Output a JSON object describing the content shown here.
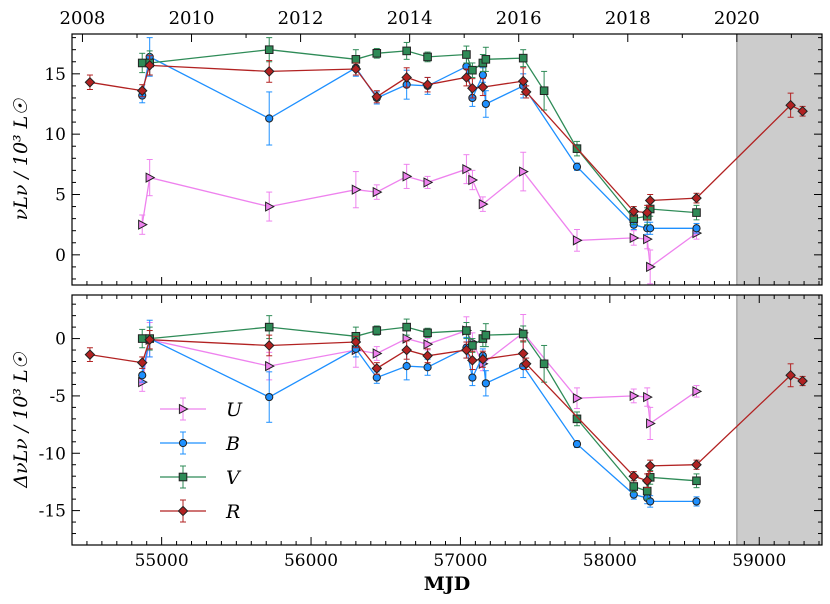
{
  "chart_data": [
    {
      "type": "scatter",
      "panel": "top",
      "ylabel": "νLν / 10³ L☉",
      "ylim": [
        -2.5,
        18.3
      ],
      "yticks": [
        0,
        5,
        10,
        15
      ],
      "xlim": [
        54400,
        59420
      ],
      "series": [
        {
          "name": "U",
          "color": "#ee82ee",
          "marker": "triangle-right",
          "x": [
            54870,
            54920,
            55720,
            56300,
            56440,
            56640,
            56780,
            57040,
            57080,
            57150,
            57420,
            57780,
            58160,
            58250,
            58270,
            58580
          ],
          "y": [
            2.5,
            6.4,
            4.0,
            5.4,
            5.2,
            6.5,
            6.0,
            7.1,
            6.2,
            4.2,
            6.9,
            1.2,
            1.4,
            1.3,
            -1.0,
            1.8
          ],
          "err": [
            0.8,
            1.5,
            1.2,
            1.5,
            0.6,
            1.0,
            0.5,
            1.2,
            0.8,
            0.6,
            1.6,
            0.9,
            0.6,
            0.8,
            1.4,
            0.5
          ]
        },
        {
          "name": "B",
          "color": "#1e90ff",
          "marker": "circle",
          "x": [
            54870,
            54920,
            55720,
            56300,
            56440,
            56640,
            56780,
            57040,
            57080,
            57150,
            57170,
            57420,
            57780,
            58160,
            58250,
            58270,
            58580
          ],
          "y": [
            13.2,
            16.4,
            11.3,
            15.5,
            13.0,
            14.1,
            14.0,
            15.6,
            13.0,
            14.9,
            12.5,
            14.0,
            7.3,
            2.5,
            2.2,
            2.2,
            2.2
          ],
          "err": [
            0.6,
            1.6,
            2.2,
            0.7,
            0.5,
            1.2,
            0.7,
            0.9,
            0.7,
            0.6,
            1.1,
            1.0,
            0.3,
            0.4,
            0.5,
            0.5,
            0.4
          ]
        },
        {
          "name": "V",
          "color": "#2e8b57",
          "marker": "square",
          "x": [
            54870,
            54920,
            55720,
            56300,
            56440,
            56640,
            56780,
            57040,
            57080,
            57150,
            57170,
            57420,
            57560,
            57780,
            58160,
            58250,
            58270,
            58580
          ],
          "y": [
            15.9,
            15.9,
            17.0,
            16.2,
            16.7,
            16.9,
            16.4,
            16.6,
            15.3,
            15.9,
            16.2,
            16.3,
            13.6,
            8.8,
            3.0,
            3.2,
            3.8,
            3.5
          ],
          "err": [
            0.8,
            1.0,
            1.0,
            0.8,
            0.4,
            0.7,
            0.4,
            0.7,
            0.6,
            0.7,
            1.0,
            0.7,
            1.6,
            0.6,
            0.5,
            0.7,
            0.6,
            0.6
          ]
        },
        {
          "name": "R",
          "color": "#b22222",
          "marker": "diamond",
          "x": [
            54520,
            54870,
            54920,
            55720,
            56300,
            56440,
            56640,
            56780,
            57040,
            57080,
            57150,
            57420,
            57440,
            58160,
            58250,
            58270,
            58580,
            59210,
            59290
          ],
          "y": [
            14.3,
            13.6,
            15.7,
            15.2,
            15.4,
            13.1,
            14.7,
            14.1,
            14.7,
            13.8,
            13.9,
            14.4,
            13.5,
            3.6,
            3.5,
            4.5,
            4.7,
            12.4,
            11.9
          ],
          "err": [
            0.6,
            0.5,
            0.8,
            0.9,
            0.5,
            0.5,
            0.8,
            0.6,
            0.7,
            0.8,
            0.7,
            1.1,
            0.5,
            0.4,
            0.6,
            0.5,
            0.4,
            1.0,
            0.4
          ]
        }
      ]
    },
    {
      "type": "scatter",
      "panel": "bottom",
      "ylabel": "ΔνLν / 10³ L☉",
      "xlabel": "MJD",
      "ylim": [
        -18.0,
        3.8
      ],
      "yticks": [
        0,
        -5,
        -10,
        -15
      ],
      "ytick_labels": [
        "0",
        "-5",
        "-10",
        "-15"
      ],
      "xlim": [
        54400,
        59420
      ],
      "xticks": [
        55000,
        56000,
        57000,
        58000,
        59000
      ],
      "series": [
        {
          "name": "U",
          "color": "#ee82ee",
          "marker": "triangle-right",
          "x": [
            54870,
            54920,
            55720,
            56300,
            56440,
            56640,
            56780,
            57040,
            57080,
            57150,
            57420,
            57780,
            58160,
            58250,
            58270,
            58580
          ],
          "y": [
            -3.8,
            -0.1,
            -2.4,
            -1.0,
            -1.3,
            0.0,
            -0.5,
            0.7,
            -0.3,
            -2.2,
            0.5,
            -5.2,
            -5.0,
            -5.1,
            -7.4,
            -4.6
          ],
          "err": [
            0.8,
            1.5,
            1.2,
            1.5,
            0.6,
            1.0,
            0.5,
            1.2,
            0.8,
            0.6,
            1.6,
            0.9,
            0.6,
            0.8,
            1.4,
            0.5
          ]
        },
        {
          "name": "B",
          "color": "#1e90ff",
          "marker": "circle",
          "x": [
            54870,
            54920,
            55720,
            56300,
            56440,
            56640,
            56780,
            57040,
            57080,
            57150,
            57170,
            57420,
            57780,
            58160,
            58250,
            58270,
            58580
          ],
          "y": [
            -3.2,
            0.0,
            -5.1,
            -0.9,
            -3.4,
            -2.4,
            -2.5,
            -0.8,
            -3.4,
            -1.5,
            -3.9,
            -2.4,
            -9.2,
            -13.6,
            -13.9,
            -14.2,
            -14.2
          ],
          "err": [
            0.6,
            1.6,
            2.2,
            0.7,
            0.5,
            1.2,
            0.7,
            0.9,
            0.7,
            0.6,
            1.1,
            1.0,
            0.3,
            0.4,
            0.5,
            0.5,
            0.4
          ]
        },
        {
          "name": "V",
          "color": "#2e8b57",
          "marker": "square",
          "x": [
            54870,
            54920,
            55720,
            56300,
            56440,
            56640,
            56780,
            57040,
            57080,
            57150,
            57170,
            57420,
            57560,
            57780,
            58160,
            58250,
            58270,
            58580
          ],
          "y": [
            0.0,
            0.0,
            1.0,
            0.2,
            0.7,
            1.0,
            0.5,
            0.7,
            -0.6,
            0.0,
            0.3,
            0.4,
            -2.2,
            -7.0,
            -12.9,
            -13.3,
            -12.1,
            -12.4
          ],
          "err": [
            0.8,
            1.0,
            1.0,
            0.8,
            0.4,
            0.7,
            0.4,
            0.7,
            0.6,
            0.7,
            1.0,
            0.7,
            1.6,
            0.6,
            0.5,
            0.7,
            0.6,
            0.6
          ]
        },
        {
          "name": "R",
          "color": "#b22222",
          "marker": "diamond",
          "x": [
            54520,
            54870,
            54920,
            55720,
            56300,
            56440,
            56640,
            56780,
            57040,
            57080,
            57150,
            57420,
            57440,
            58160,
            58250,
            58270,
            58580,
            59210,
            59290
          ],
          "y": [
            -1.4,
            -2.1,
            -0.1,
            -0.6,
            -0.3,
            -2.6,
            -1.0,
            -1.5,
            -1.0,
            -1.9,
            -1.8,
            -1.3,
            -2.2,
            -12.0,
            -12.4,
            -11.1,
            -11.0,
            -3.2,
            -3.7
          ],
          "err": [
            0.6,
            0.5,
            0.8,
            0.9,
            0.5,
            0.5,
            0.8,
            0.6,
            0.7,
            0.8,
            0.7,
            1.1,
            0.5,
            0.4,
            0.6,
            0.5,
            0.4,
            1.0,
            0.4
          ]
        }
      ]
    }
  ],
  "top_axis": {
    "label_values": [
      2008,
      2010,
      2012,
      2014,
      2016,
      2018,
      2020
    ],
    "mjd_positions": [
      54470,
      55200,
      55930,
      56660,
      57390,
      58120,
      58850
    ],
    "minor_mjd": [
      54835,
      55565,
      56295,
      57025,
      57755,
      58485,
      59215
    ]
  },
  "shaded_region": {
    "x_start": 58850,
    "x_end": 59420,
    "color": "#cccccc"
  },
  "legend": {
    "entries": [
      "U",
      "B",
      "V",
      "R"
    ],
    "location": "lower-left of bottom panel"
  }
}
